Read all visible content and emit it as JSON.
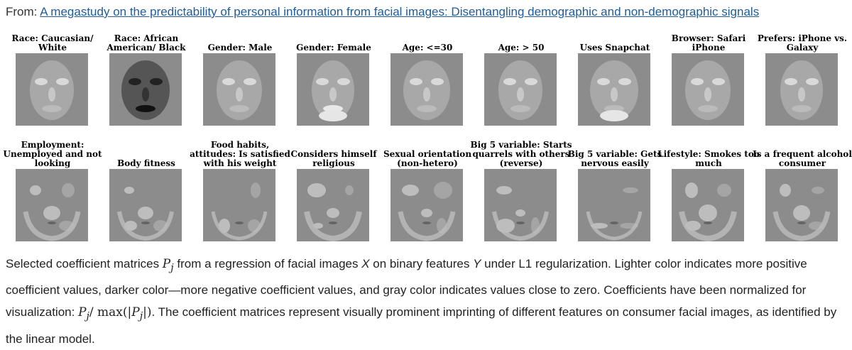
{
  "source": {
    "prefix": "From:",
    "link_text": "A megastudy on the predictability of personal information from facial images: Disentangling demographic and non-demographic signals"
  },
  "rows": [
    {
      "labels": [
        "Race: Caucasian/ White",
        "Race: African American/ Black",
        "Gender: Male",
        "Gender: Female",
        "Age: <=30",
        "Age: > 50",
        "Uses Snapchat",
        "Browser: Safari iPhone",
        "Prefers: iPhone vs. Galaxy"
      ]
    },
    {
      "labels": [
        "Employment: Unemployed and not looking",
        "Body fitness",
        "Food habits, attitudes: Is satisfied with his weight",
        "Considers himself religious",
        "Sexual orientation (non-hetero)",
        "Big 5 variable: Starts quarrels with others (reverse)",
        "Big 5 variable: Gets nervous easily",
        "Lifestyle: Smokes too much",
        "Is a frequent alcohol consumer"
      ]
    }
  ],
  "caption": {
    "t1": "Selected coefficient matrices ",
    "m1_base": "P",
    "m1_sub": "j",
    "t2": " from a regression of facial images ",
    "x_var": "X",
    "t3": " on binary features ",
    "y_var": "Y",
    "t4": " under L1 regularization. Lighter color indicates more positive coefficient values, darker color—more negative coefficient values, and gray color indicates values close to zero. Coefficients have been normalized for visualization: ",
    "m2_base": "P",
    "m2_sub": "j",
    "m2_mid": "/ max(|",
    "m2_base2": "P",
    "m2_sub2": "j",
    "m2_end": "|)",
    "t5": ". The coefficient matrices represent visually prominent imprinting of different features on consumer facial images, as identified by the linear model."
  }
}
